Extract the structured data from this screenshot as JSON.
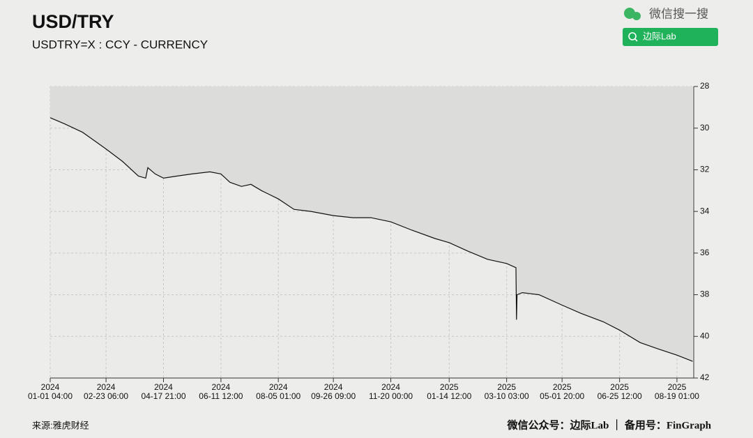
{
  "chart_data": {
    "type": "line",
    "title": "USD/TRY",
    "subtitle": "USDTRY=X : CCY - CURRENCY",
    "source": "来源:雅虎财经",
    "footer": "微信公众号：边际Lab ｜ 备用号：FinGraph",
    "watermark": "微信搜一搜",
    "search_label": "边际Lab",
    "color": "#111111",
    "area_color": "#dcdcdb",
    "grid": true,
    "x": [
      "2024-01-01 04:00",
      "2024-01-15 00:00",
      "2024-02-01 00:00",
      "2024-02-23 06:00",
      "2024-03-10 00:00",
      "2024-03-25 00:00",
      "2024-04-01 00:00",
      "2024-04-03 00:00",
      "2024-04-10 00:00",
      "2024-04-17 21:00",
      "2024-05-01 00:00",
      "2024-05-15 00:00",
      "2024-06-01 00:00",
      "2024-06-11 12:00",
      "2024-06-20 00:00",
      "2024-07-01 00:00",
      "2024-07-10 00:00",
      "2024-07-20 00:00",
      "2024-08-05 01:00",
      "2024-08-20 00:00",
      "2024-09-05 00:00",
      "2024-09-26 09:00",
      "2024-10-15 00:00",
      "2024-11-01 00:00",
      "2024-11-20 00:00",
      "2024-12-10 00:00",
      "2025-01-01 00:00",
      "2025-01-14 12:00",
      "2025-02-01 00:00",
      "2025-02-20 00:00",
      "2025-03-10 03:00",
      "2025-03-19 00:00",
      "2025-03-19 12:00",
      "2025-03-20 00:00",
      "2025-03-25 00:00",
      "2025-04-10 00:00",
      "2025-05-01 20:00",
      "2025-05-20 00:00",
      "2025-06-10 00:00",
      "2025-06-25 12:00",
      "2025-07-15 00:00",
      "2025-08-01 00:00",
      "2025-08-19 01:00",
      "2025-09-03 00:00"
    ],
    "values": [
      29.5,
      29.8,
      30.2,
      31.0,
      31.6,
      32.3,
      32.4,
      31.9,
      32.2,
      32.4,
      32.3,
      32.2,
      32.1,
      32.2,
      32.6,
      32.8,
      32.7,
      33.0,
      33.4,
      33.9,
      34.0,
      34.2,
      34.3,
      34.3,
      34.5,
      34.9,
      35.3,
      35.5,
      35.9,
      36.3,
      36.5,
      36.7,
      39.2,
      38.0,
      37.9,
      38.0,
      38.5,
      38.9,
      39.3,
      39.7,
      40.3,
      40.6,
      40.9,
      41.2
    ],
    "xlim": [
      "2024-01-01 04:00",
      "2025-09-04 00:00"
    ],
    "xticks": [
      {
        "value": "2024-01-01 04:00",
        "label": [
          "2024",
          "01-01 04:00"
        ]
      },
      {
        "value": "2024-02-23 06:00",
        "label": [
          "2024",
          "02-23 06:00"
        ]
      },
      {
        "value": "2024-04-17 21:00",
        "label": [
          "2024",
          "04-17 21:00"
        ]
      },
      {
        "value": "2024-06-11 12:00",
        "label": [
          "2024",
          "06-11 12:00"
        ]
      },
      {
        "value": "2024-08-05 01:00",
        "label": [
          "2024",
          "08-05 01:00"
        ]
      },
      {
        "value": "2024-09-26 09:00",
        "label": [
          "2024",
          "09-26 09:00"
        ]
      },
      {
        "value": "2024-11-20 00:00",
        "label": [
          "2024",
          "11-20 00:00"
        ]
      },
      {
        "value": "2025-01-14 12:00",
        "label": [
          "2025",
          "01-14 12:00"
        ]
      },
      {
        "value": "2025-03-10 03:00",
        "label": [
          "2025",
          "03-10 03:00"
        ]
      },
      {
        "value": "2025-05-01 20:00",
        "label": [
          "2025",
          "05-01 20:00"
        ]
      },
      {
        "value": "2025-06-25 12:00",
        "label": [
          "2025",
          "06-25 12:00"
        ]
      },
      {
        "value": "2025-08-19 01:00",
        "label": [
          "2025",
          "08-19 01:00"
        ]
      }
    ],
    "ylim": [
      42,
      28
    ],
    "yticks": [
      28,
      30,
      32,
      34,
      36,
      38,
      40,
      42
    ]
  }
}
